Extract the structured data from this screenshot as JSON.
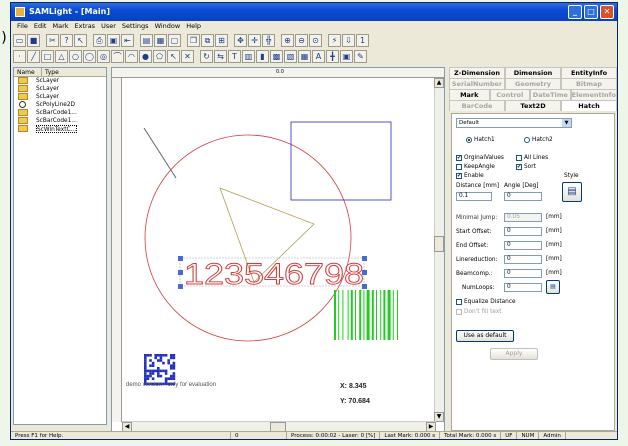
{
  "stray_text": ");",
  "window": {
    "title": "SAMLight - [Main]"
  },
  "menu": [
    "File",
    "Edit",
    "Mark",
    "Extras",
    "User",
    "Settings",
    "Window",
    "Help"
  ],
  "tree": {
    "columns": [
      "Name",
      "Type"
    ],
    "rows": [
      {
        "type": "ScLayer",
        "icon": "folder-icon"
      },
      {
        "type": "ScLayer",
        "icon": "folder-icon"
      },
      {
        "type": "ScLayer",
        "icon": "folder-icon"
      },
      {
        "type": "ScPolyLine2D",
        "icon": "circle-icon"
      },
      {
        "type": "ScBarCode1...",
        "icon": "folder-icon"
      },
      {
        "type": "ScBarCode1...",
        "icon": "folder-icon"
      },
      {
        "type": "ScWinTextC...",
        "icon": "folder-icon"
      }
    ]
  },
  "canvas": {
    "ruler_label": "0.0",
    "marker_text": "123546798",
    "demo_text": "demo version - only for evaluation",
    "x_readout": "X: 8.345",
    "y_readout": "Y: 70.684",
    "colors": {
      "circle": "#d43c3c",
      "rect": "#2828c8",
      "triangle": "#b0a050",
      "barcode": "#22cc22",
      "datamatrix": "#2030c0"
    }
  },
  "panel": {
    "tabs_row1": [
      "Z-Dimension",
      "Dimension",
      "EntityInfo"
    ],
    "tabs_row2": [
      "SerialNumber",
      "Geometry",
      "Bitmap"
    ],
    "tabs_row3": [
      "Mark",
      "Control",
      "DateTime",
      "ElementInfo"
    ],
    "tabs_row4": [
      "BarCode",
      "Text2D",
      "Hatch"
    ],
    "style_select": "Default",
    "hatch1": "Hatch1",
    "hatch2": "Hatch2",
    "original_values": "OrginalValues",
    "all_lines": "All Lines",
    "keep_angle": "KeepAngle",
    "sort": "Sort",
    "enable": "Enable",
    "style_label": "Style",
    "distance_label": "Distance [mm]",
    "angle_label": "Angle [Deg]",
    "distance_value": "0.1",
    "angle_value": "0",
    "minimal_jump_label": "Minimal Jump:",
    "minimal_jump_value": "0.05",
    "start_offset_label": "Start Offset:",
    "start_offset_value": "0",
    "end_offset_label": "End Offset:",
    "end_offset_value": "0",
    "linereduction_label": "Linereduction:",
    "linereduction_value": "0",
    "beamcomp_label": "Beamcomp.:",
    "beamcomp_value": "0",
    "numloops_label": "NumLoops:",
    "numloops_value": "0",
    "unit_mm": "[mm]",
    "equalize_distance": "Equalize Distance",
    "dont_fill_text": "Don't fill text",
    "use_as_default": "Use as default",
    "apply": "Apply"
  },
  "status": {
    "help": "Press F1 for Help.",
    "value": "0",
    "process": "Process: 0:00:02 - Laser: 0 [%]",
    "last_mark": "Last Mark:    0.000 s",
    "total_mark": "Total Mark:    0.000 s",
    "uf": "UF",
    "num": "NUM",
    "user": "Admin"
  }
}
